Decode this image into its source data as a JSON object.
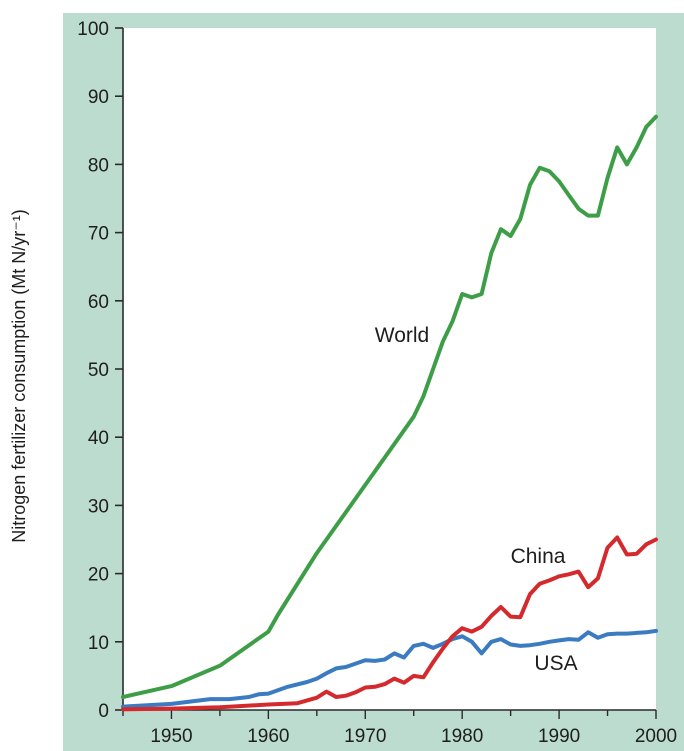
{
  "colors": {
    "frame": "#bddcd0",
    "plot_bg": "#ffffff",
    "axis": "#2a2a2a",
    "world": "#3e9e48",
    "china": "#d42a2e",
    "usa": "#3a7bc2"
  },
  "chart_data": {
    "type": "line",
    "title": "",
    "xlabel": "",
    "ylabel": "Nitrogen fertilizer consumption (Mt N/yr⁻¹)",
    "xlim": [
      1945,
      2000
    ],
    "ylim": [
      0,
      100
    ],
    "x_ticks": [
      1950,
      1960,
      1970,
      1980,
      1990,
      2000
    ],
    "y_ticks": [
      0,
      10,
      20,
      30,
      40,
      50,
      60,
      70,
      80,
      90,
      100
    ],
    "grid": false,
    "legend": "none (series labelled directly on the plot)",
    "series": [
      {
        "name": "World",
        "color_key": "world",
        "x": [
          1945,
          1950,
          1955,
          1960,
          1961,
          1965,
          1970,
          1975,
          1976,
          1977,
          1978,
          1979,
          1980,
          1981,
          1982,
          1983,
          1984,
          1985,
          1986,
          1987,
          1988,
          1989,
          1990,
          1991,
          1992,
          1993,
          1994,
          1995,
          1996,
          1997,
          1998,
          1999,
          2000
        ],
        "values": [
          1.9,
          3.5,
          6.5,
          11.5,
          14,
          23,
          33,
          43,
          46,
          50,
          54,
          57,
          61,
          60.5,
          61,
          67,
          70.5,
          69.5,
          72,
          77,
          79.5,
          79,
          77.5,
          75.5,
          73.5,
          72.5,
          72.5,
          78,
          82.5,
          80,
          82.5,
          85.5,
          87
        ]
      },
      {
        "name": "China",
        "color_key": "china",
        "x": [
          1945,
          1950,
          1955,
          1960,
          1963,
          1965,
          1966,
          1967,
          1968,
          1969,
          1970,
          1971,
          1972,
          1973,
          1974,
          1975,
          1976,
          1977,
          1978,
          1979,
          1980,
          1981,
          1982,
          1983,
          1984,
          1985,
          1986,
          1987,
          1988,
          1989,
          1990,
          1991,
          1992,
          1993,
          1994,
          1995,
          1996,
          1997,
          1998,
          1999,
          2000
        ],
        "values": [
          0.1,
          0.2,
          0.4,
          0.8,
          1.0,
          1.8,
          2.7,
          1.9,
          2.1,
          2.6,
          3.3,
          3.4,
          3.8,
          4.6,
          4.0,
          5.0,
          4.8,
          7.0,
          9.0,
          10.8,
          12.0,
          11.5,
          12.2,
          13.8,
          15.1,
          13.7,
          13.6,
          17.0,
          18.5,
          19.0,
          19.6,
          19.9,
          20.3,
          18.0,
          19.3,
          23.8,
          25.3,
          22.8,
          22.9,
          24.3,
          25.0
        ]
      },
      {
        "name": "USA",
        "color_key": "usa",
        "x": [
          1945,
          1950,
          1954,
          1956,
          1958,
          1959,
          1960,
          1962,
          1964,
          1965,
          1966,
          1967,
          1968,
          1969,
          1970,
          1971,
          1972,
          1973,
          1974,
          1975,
          1976,
          1977,
          1978,
          1979,
          1980,
          1981,
          1982,
          1983,
          1984,
          1985,
          1986,
          1987,
          1988,
          1989,
          1990,
          1991,
          1992,
          1993,
          1994,
          1995,
          1996,
          1997,
          1998,
          1999,
          2000
        ],
        "values": [
          0.5,
          0.9,
          1.6,
          1.6,
          1.9,
          2.3,
          2.4,
          3.4,
          4.1,
          4.6,
          5.4,
          6.1,
          6.3,
          6.8,
          7.3,
          7.2,
          7.4,
          8.3,
          7.7,
          9.4,
          9.7,
          9.1,
          9.7,
          10.4,
          10.8,
          10.0,
          8.3,
          10.0,
          10.4,
          9.6,
          9.4,
          9.5,
          9.7,
          10.0,
          10.2,
          10.4,
          10.3,
          11.4,
          10.6,
          11.1,
          11.2,
          11.2,
          11.3,
          11.4,
          11.6
        ]
      }
    ],
    "labels": [
      {
        "text": "World",
        "series": "World"
      },
      {
        "text": "China",
        "series": "China"
      },
      {
        "text": "USA",
        "series": "USA"
      }
    ]
  }
}
